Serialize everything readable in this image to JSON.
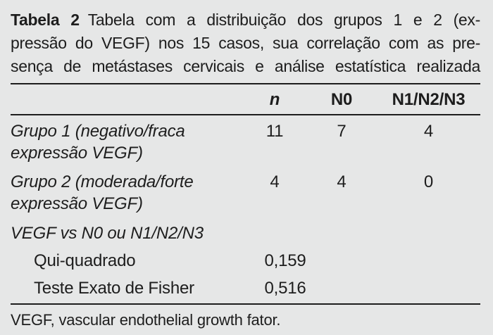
{
  "colors": {
    "background": "#e6e7e7",
    "text": "#1d1d1d",
    "rule": "#1d1d1d"
  },
  "title": {
    "label": "Tabela 2",
    "line1": "Tabela com a distribuição dos grupos 1 e 2 (ex-",
    "line2": "pressão do VEGF) nos 15 casos, sua correlação com as pre-",
    "line3": "sença de metástases cervicais e análise estatística realizada"
  },
  "table": {
    "header": {
      "n": "n",
      "n0": "N0",
      "n123": "N1/N2/N3"
    },
    "rows": {
      "grupo1": {
        "label_line1": "Grupo 1 (negativo/fraca",
        "label_line2": "expressão VEGF)",
        "n": "11",
        "n0": "7",
        "n123": "4"
      },
      "grupo2": {
        "label_line1": "Grupo 2 (moderada/forte",
        "label_line2": "expressão VEGF)",
        "n": "4",
        "n0": "4",
        "n123": "0"
      },
      "vegf_vs": {
        "label": "VEGF vs N0 ou N1/N2/N3"
      },
      "qui_quadrado": {
        "label": "Qui-quadrado",
        "value": "0,159"
      },
      "fisher": {
        "label": "Teste Exato de Fisher",
        "value": "0,516"
      }
    },
    "footnote": "VEGF, vascular endothelial growth fator."
  }
}
